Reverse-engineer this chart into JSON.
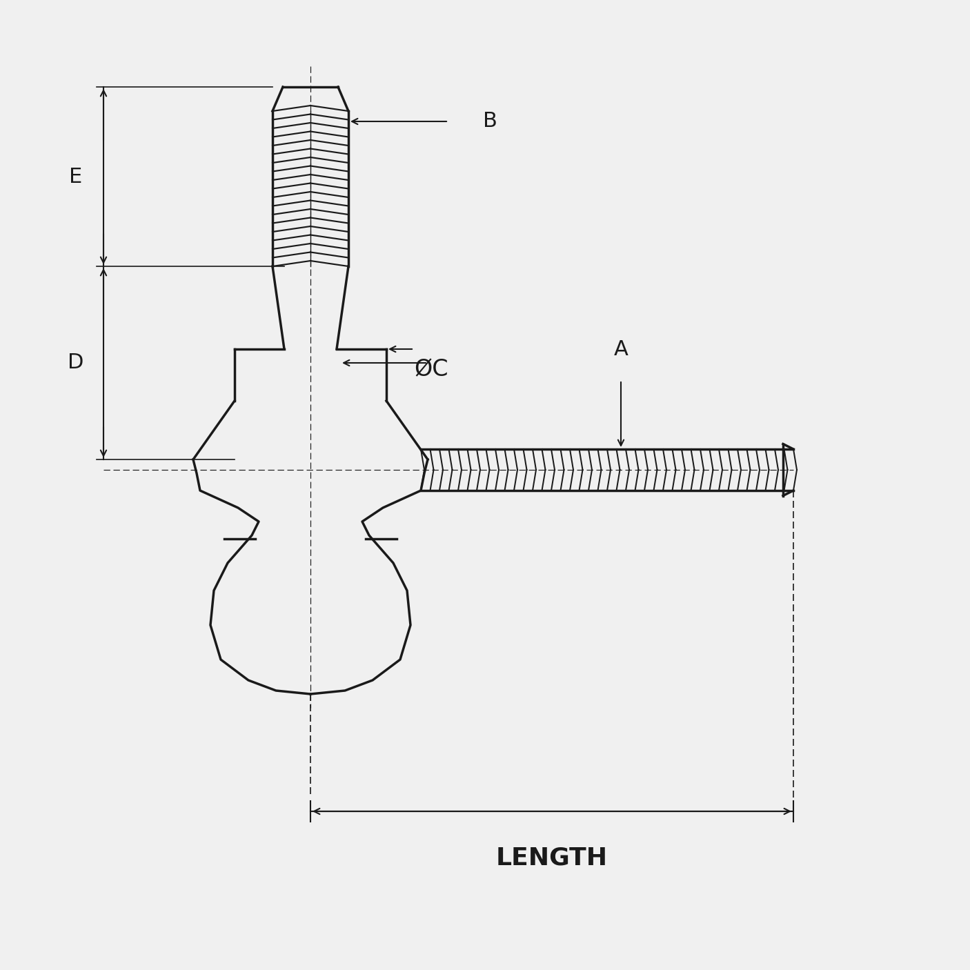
{
  "bg_color": "#f0f0f0",
  "line_color": "#1a1a1a",
  "line_width": 2.5,
  "thin_line": 1.2,
  "labels": {
    "A": "A",
    "B": "B",
    "C": "ØC",
    "D": "D",
    "E": "E",
    "LENGTH": "LENGTH"
  },
  "font_size_labels": 22,
  "font_size_dim": 20
}
